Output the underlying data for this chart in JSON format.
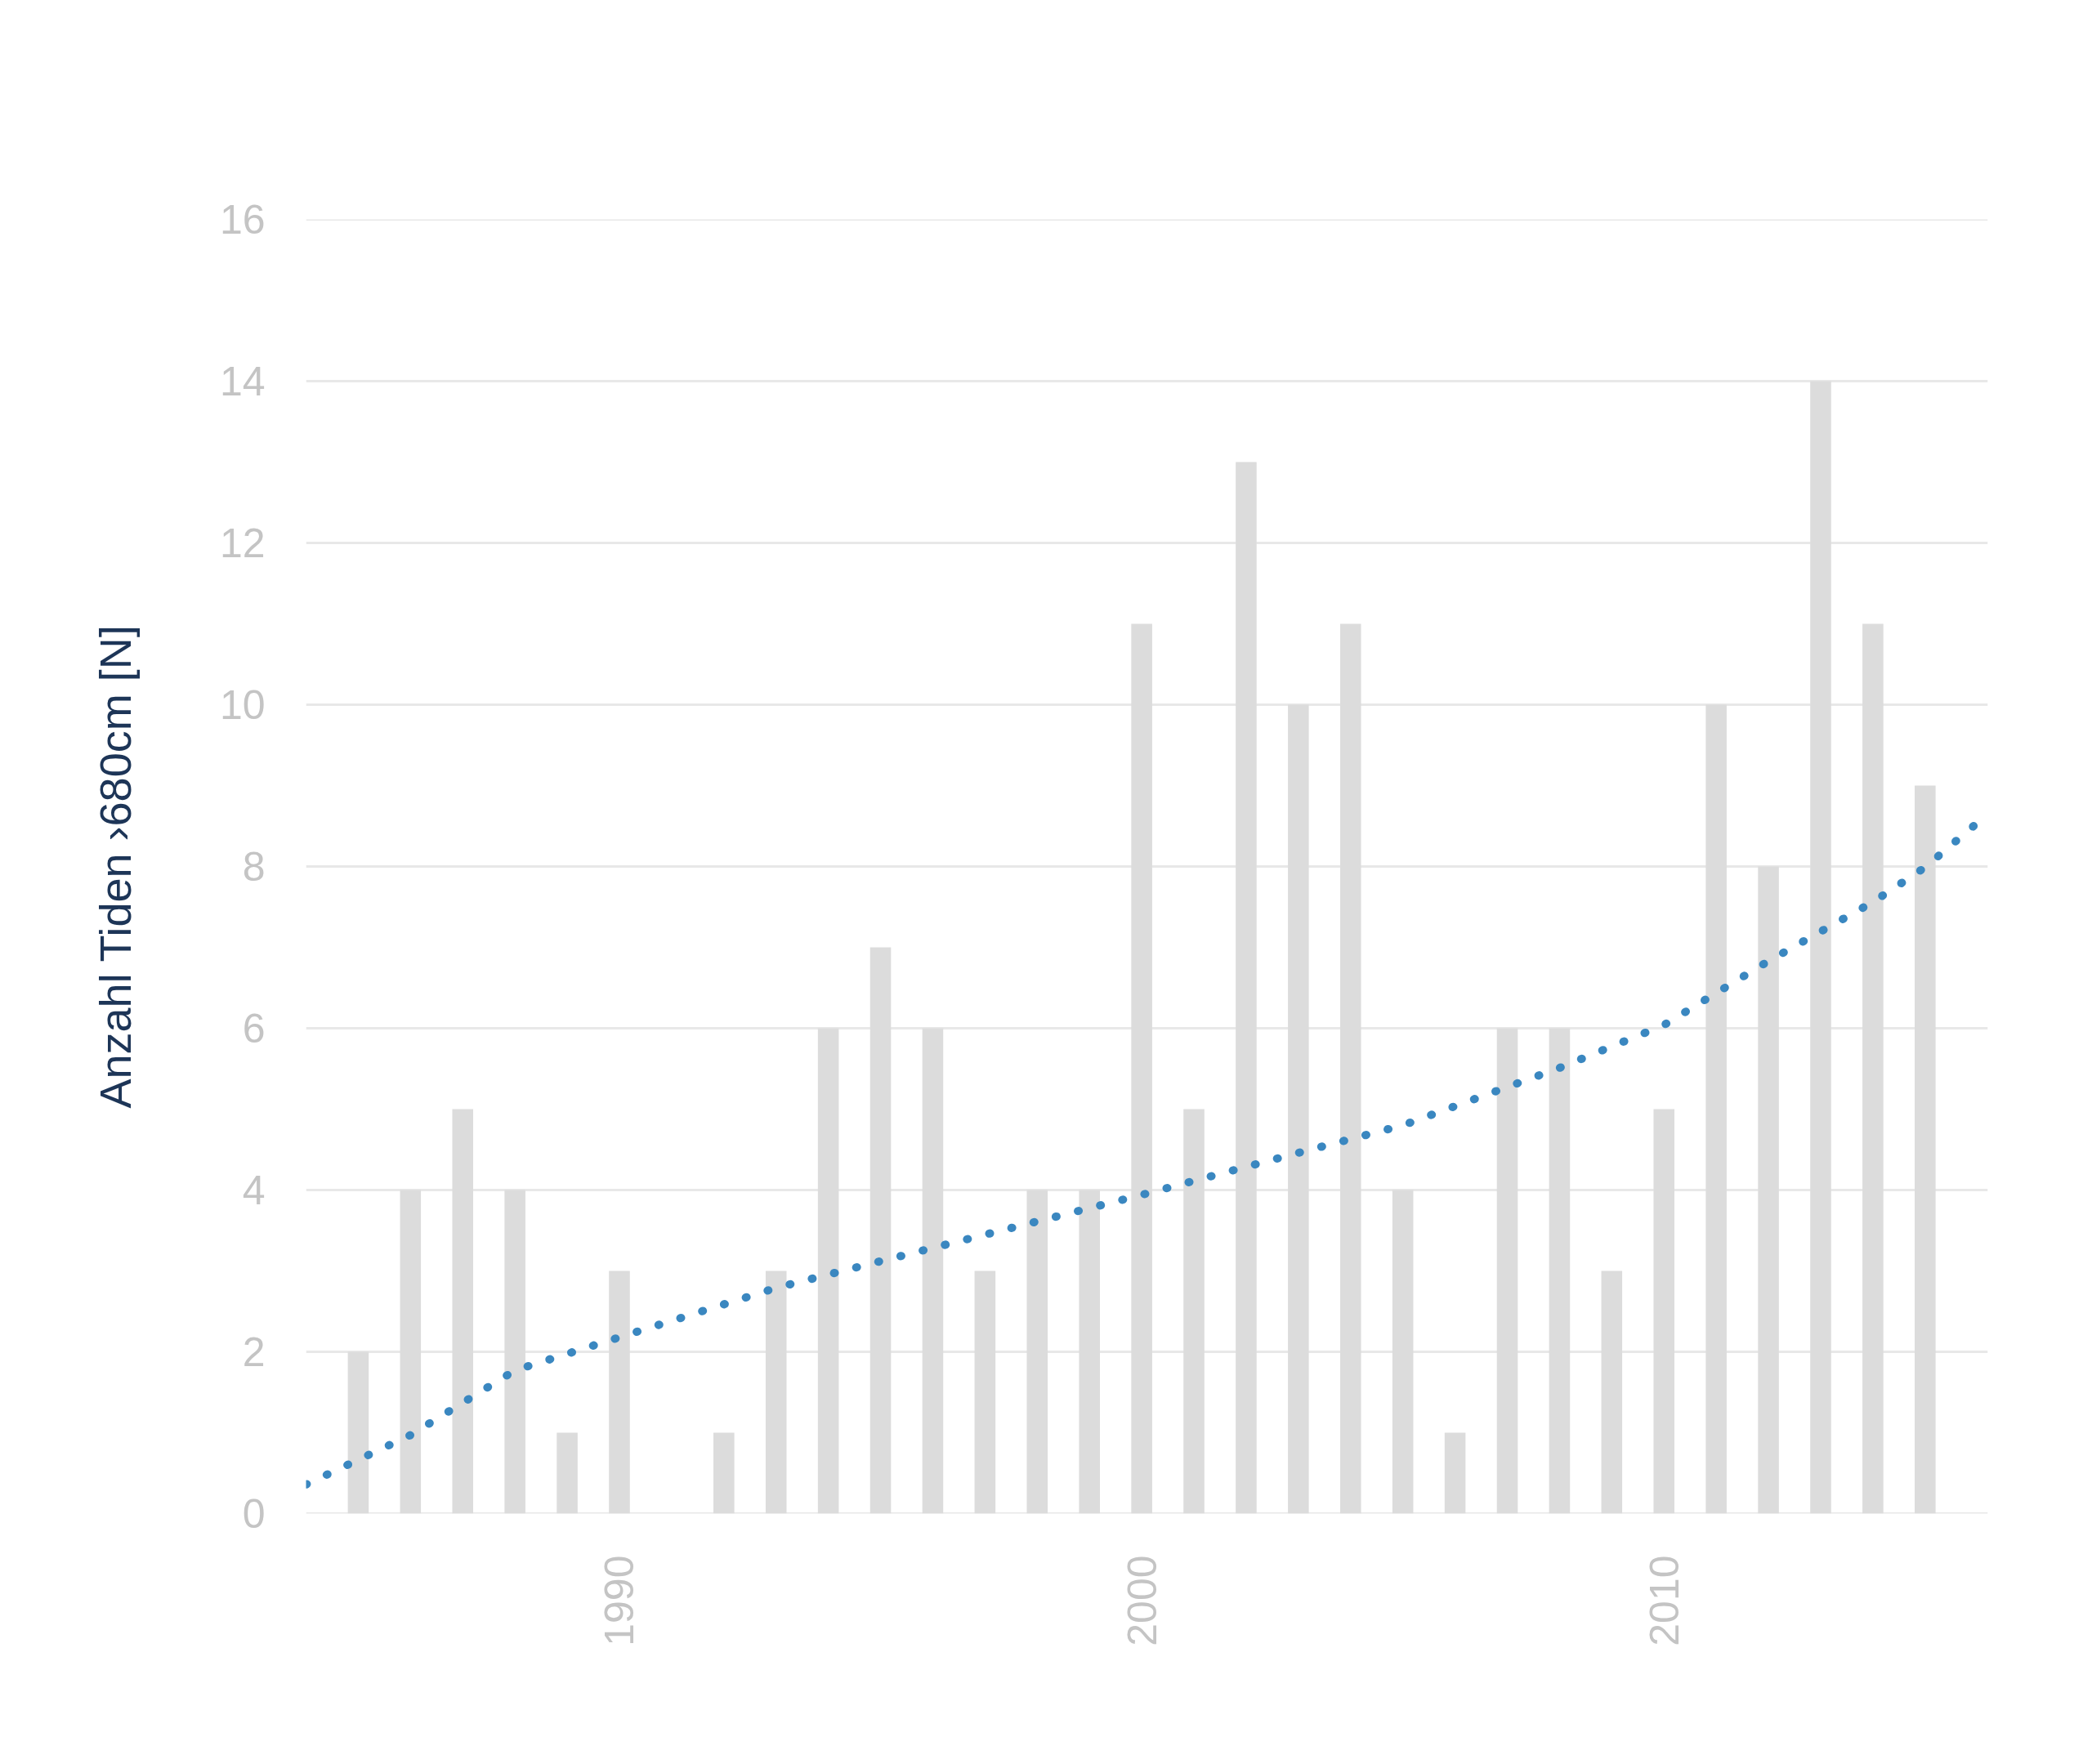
{
  "chart_data": {
    "type": "bar",
    "ylabel": "Anzahl Tiden ›680cm [N]",
    "x": [
      1985,
      1986,
      1987,
      1988,
      1989,
      1990,
      1991,
      1992,
      1993,
      1994,
      1995,
      1996,
      1997,
      1998,
      1999,
      2000,
      2001,
      2002,
      2003,
      2004,
      2005,
      2006,
      2007,
      2008,
      2009,
      2010,
      2011,
      2012,
      2013,
      2014,
      2015
    ],
    "series": [
      {
        "color": "#dcdcdc",
        "values": [
          2,
          4,
          5,
          4,
          1,
          3,
          0,
          1,
          3,
          6,
          7,
          6,
          3,
          4,
          4,
          11,
          5,
          13,
          10,
          11,
          4,
          1,
          6,
          6,
          3,
          5,
          10,
          8,
          14,
          11,
          9
        ]
      },
      {
        "type": "line",
        "color": "#3a87c0",
        "line_style": "dotted",
        "x": [
          1984,
          1986,
          1988,
          1990,
          1993,
          1995,
          2000,
          2003,
          2005,
          2008,
          2010,
          2012,
          2014,
          2015,
          2016.2
        ],
        "values": [
          0.36,
          0.97,
          1.77,
          2.18,
          2.79,
          3.12,
          3.94,
          4.46,
          4.8,
          5.51,
          6.04,
          6.83,
          7.56,
          7.99,
          8.65
        ]
      }
    ],
    "xlim": [
      1984,
      2016.2
    ],
    "xticks": [
      1990,
      2000,
      2010
    ],
    "ylim": [
      0,
      16
    ],
    "yticks": [
      0,
      2,
      4,
      6,
      8,
      10,
      12,
      14,
      16
    ],
    "grid": "y"
  }
}
